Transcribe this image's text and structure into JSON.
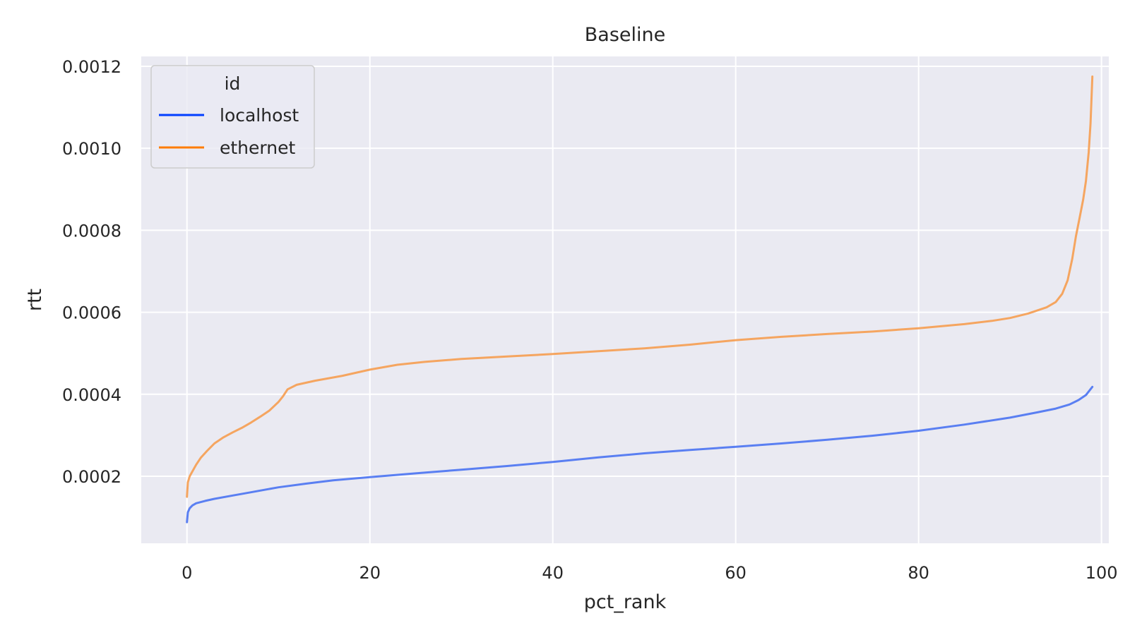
{
  "chart_data": {
    "type": "line",
    "title": "Baseline",
    "xlabel": "pct_rank",
    "ylabel": "rtt",
    "xlim": [
      -5,
      100.8
    ],
    "ylim": [
      3.65e-05,
      0.001224
    ],
    "xticks": [
      0,
      20,
      40,
      60,
      80,
      100
    ],
    "xtick_labels": [
      "0",
      "20",
      "40",
      "60",
      "80",
      "100"
    ],
    "yticks": [
      0.0002,
      0.0004,
      0.0006,
      0.0008,
      0.001,
      0.0012
    ],
    "ytick_labels": [
      "0.0002",
      "0.0004",
      "0.0006",
      "0.0008",
      "0.0010",
      "0.0012"
    ],
    "grid": true,
    "legend": {
      "title": "id",
      "placement": "top-left"
    },
    "series": [
      {
        "name": "localhost",
        "color": "#023eff",
        "line_color": "#5a7ff2",
        "x": [
          0,
          0.1,
          0.3,
          0.6,
          1,
          2,
          3,
          5,
          7,
          10,
          13,
          16,
          20,
          25,
          30,
          35,
          40,
          45,
          50,
          55,
          60,
          65,
          70,
          75,
          80,
          85,
          90,
          93,
          95,
          96.5,
          97.5,
          98.3,
          99
        ],
        "y": [
          8.8e-05,
          0.000112,
          0.000122,
          0.000129,
          0.000134,
          0.00014,
          0.000145,
          0.000153,
          0.000161,
          0.000173,
          0.000182,
          0.00019,
          0.000198,
          0.000207,
          0.000216,
          0.000225,
          0.000235,
          0.000246,
          0.000256,
          0.000264,
          0.000272,
          0.00028,
          0.000289,
          0.000299,
          0.000311,
          0.000326,
          0.000343,
          0.000356,
          0.000365,
          0.000375,
          0.000386,
          0.000398,
          0.000418
        ]
      },
      {
        "name": "ethernet",
        "color": "#ff7c00",
        "line_color": "#f5a560",
        "x": [
          0,
          0.1,
          0.3,
          0.6,
          1,
          1.5,
          2.2,
          3,
          4,
          5,
          6,
          7,
          8,
          9,
          10,
          10.5,
          11,
          12,
          14,
          17,
          20,
          23,
          26,
          30,
          35,
          40,
          45,
          50,
          55,
          60,
          65,
          70,
          75,
          80,
          85,
          88,
          90,
          92,
          94,
          95,
          95.7,
          96.3,
          96.8,
          97.2,
          97.6,
          98,
          98.3,
          98.6,
          98.8,
          99
        ],
        "y": [
          0.00015,
          0.000185,
          0.0002,
          0.000212,
          0.000228,
          0.000245,
          0.000262,
          0.00028,
          0.000295,
          0.000307,
          0.000318,
          0.000331,
          0.000345,
          0.00036,
          0.000381,
          0.000395,
          0.000412,
          0.000423,
          0.000433,
          0.000445,
          0.00046,
          0.000472,
          0.000479,
          0.000486,
          0.000492,
          0.000498,
          0.000505,
          0.000512,
          0.000521,
          0.000532,
          0.00054,
          0.000547,
          0.000553,
          0.000561,
          0.000571,
          0.000579,
          0.000586,
          0.000597,
          0.000612,
          0.000625,
          0.000645,
          0.000678,
          0.00073,
          0.000785,
          0.00083,
          0.000875,
          0.00092,
          0.00099,
          0.00106,
          0.001175
        ]
      }
    ]
  }
}
